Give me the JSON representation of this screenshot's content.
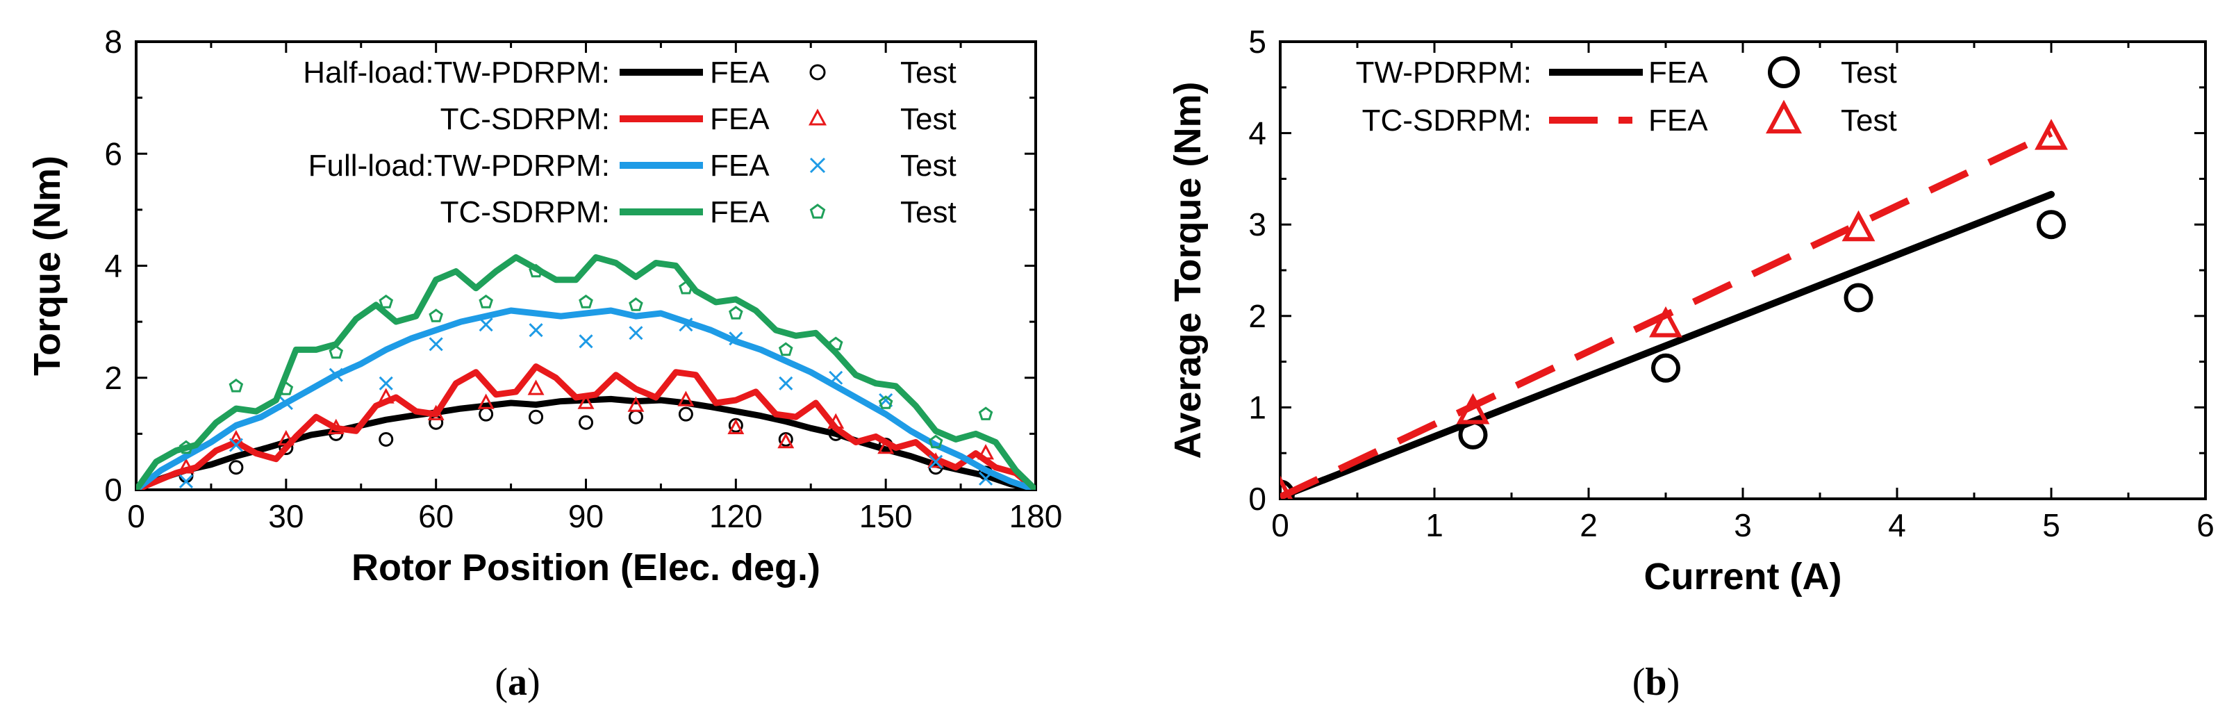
{
  "chart_data": [
    {
      "type": "line",
      "panel_label": "a",
      "title": "",
      "xlabel": "Rotor Position (Elec. deg.)",
      "ylabel": "Torque (Nm)",
      "xlim": [
        0,
        180
      ],
      "ylim": [
        0,
        8
      ],
      "xticks": [
        0,
        30,
        60,
        90,
        120,
        150,
        180
      ],
      "yticks": [
        0,
        2,
        4,
        6,
        8
      ],
      "legend": {
        "placement": "top",
        "groups": [
          {
            "prefix": "Half-load:",
            "label": "TW-PDRPM:",
            "fea": "FEA",
            "test": "Test"
          },
          {
            "prefix": "",
            "label": "TC-SDRPM:",
            "fea": "FEA",
            "test": "Test"
          },
          {
            "prefix": "Full-load:",
            "label": "TW-PDRPM:",
            "fea": "FEA",
            "test": "Test"
          },
          {
            "prefix": "",
            "label": "TC-SDRPM:",
            "fea": "FEA",
            "test": "Test"
          }
        ]
      },
      "series": [
        {
          "name": "Half-load TW-PDRPM FEA",
          "kind": "line",
          "color": "#000000",
          "x": [
            0,
            5,
            10,
            15,
            20,
            25,
            30,
            35,
            40,
            45,
            50,
            55,
            60,
            65,
            70,
            75,
            80,
            85,
            90,
            95,
            100,
            105,
            110,
            115,
            120,
            125,
            130,
            135,
            140,
            145,
            150,
            155,
            160,
            165,
            170,
            175,
            180
          ],
          "y": [
            0,
            0.2,
            0.35,
            0.45,
            0.6,
            0.72,
            0.85,
            0.98,
            1.05,
            1.15,
            1.25,
            1.32,
            1.38,
            1.45,
            1.5,
            1.55,
            1.52,
            1.58,
            1.6,
            1.62,
            1.58,
            1.6,
            1.55,
            1.48,
            1.4,
            1.32,
            1.22,
            1.1,
            1.0,
            0.85,
            0.72,
            0.6,
            0.45,
            0.35,
            0.25,
            0.1,
            0
          ]
        },
        {
          "name": "Half-load TW-PDRPM Test",
          "kind": "marker",
          "marker": "circle",
          "color": "#000000",
          "x": [
            10,
            20,
            30,
            40,
            50,
            60,
            70,
            80,
            90,
            100,
            110,
            120,
            130,
            140,
            150,
            160,
            170
          ],
          "y": [
            0.25,
            0.4,
            0.75,
            1.0,
            0.9,
            1.2,
            1.35,
            1.3,
            1.2,
            1.3,
            1.35,
            1.15,
            0.9,
            1.0,
            0.8,
            0.4,
            0.3
          ]
        },
        {
          "name": "Half-load TC-SDRPM FEA",
          "kind": "line",
          "color": "#e8191b",
          "x": [
            0,
            4,
            8,
            12,
            16,
            20,
            24,
            28,
            32,
            36,
            40,
            44,
            48,
            52,
            56,
            60,
            64,
            68,
            72,
            76,
            80,
            84,
            88,
            92,
            96,
            100,
            104,
            108,
            112,
            116,
            120,
            124,
            128,
            132,
            136,
            140,
            144,
            148,
            152,
            156,
            160,
            164,
            168,
            172,
            176,
            180
          ],
          "y": [
            0,
            0.15,
            0.3,
            0.4,
            0.7,
            0.85,
            0.65,
            0.55,
            0.95,
            1.3,
            1.1,
            1.05,
            1.5,
            1.65,
            1.4,
            1.35,
            1.9,
            2.1,
            1.7,
            1.75,
            2.2,
            2.0,
            1.65,
            1.7,
            2.05,
            1.8,
            1.65,
            2.1,
            2.05,
            1.55,
            1.6,
            1.75,
            1.35,
            1.3,
            1.55,
            1.1,
            0.85,
            0.95,
            0.75,
            0.85,
            0.55,
            0.4,
            0.65,
            0.4,
            0.3,
            0
          ]
        },
        {
          "name": "Half-load TC-SDRPM Test",
          "kind": "marker",
          "marker": "triangle",
          "color": "#e8191b",
          "x": [
            10,
            20,
            30,
            40,
            50,
            60,
            70,
            80,
            90,
            100,
            110,
            120,
            130,
            140,
            150,
            160,
            170
          ],
          "y": [
            0.4,
            0.9,
            0.9,
            1.1,
            1.65,
            1.35,
            1.55,
            1.8,
            1.55,
            1.5,
            1.6,
            1.1,
            0.85,
            1.2,
            0.75,
            0.5,
            0.65
          ]
        },
        {
          "name": "Full-load TW-PDRPM FEA",
          "kind": "line",
          "color": "#1e9be6",
          "x": [
            0,
            5,
            10,
            15,
            20,
            25,
            30,
            35,
            40,
            45,
            50,
            55,
            60,
            65,
            70,
            75,
            80,
            85,
            90,
            95,
            100,
            105,
            110,
            115,
            120,
            125,
            130,
            135,
            140,
            145,
            150,
            155,
            160,
            165,
            170,
            175,
            180
          ],
          "y": [
            0,
            0.35,
            0.6,
            0.85,
            1.15,
            1.3,
            1.55,
            1.8,
            2.05,
            2.25,
            2.5,
            2.7,
            2.85,
            3.0,
            3.1,
            3.2,
            3.15,
            3.1,
            3.15,
            3.2,
            3.1,
            3.15,
            3.0,
            2.85,
            2.65,
            2.5,
            2.3,
            2.1,
            1.85,
            1.6,
            1.35,
            1.05,
            0.8,
            0.6,
            0.35,
            0.15,
            0
          ]
        },
        {
          "name": "Full-load TW-PDRPM Test",
          "kind": "marker",
          "marker": "x",
          "color": "#1e9be6",
          "x": [
            10,
            20,
            30,
            40,
            50,
            60,
            70,
            80,
            90,
            100,
            110,
            120,
            130,
            140,
            150,
            160,
            170
          ],
          "y": [
            0.15,
            0.8,
            1.55,
            2.05,
            1.9,
            2.6,
            2.95,
            2.85,
            2.65,
            2.8,
            2.95,
            2.7,
            1.9,
            2.0,
            1.6,
            0.5,
            0.2
          ]
        },
        {
          "name": "Full-load TC-SDRPM FEA",
          "kind": "line",
          "color": "#1fa05a",
          "x": [
            0,
            4,
            8,
            12,
            16,
            20,
            24,
            28,
            32,
            36,
            40,
            44,
            48,
            52,
            56,
            60,
            64,
            68,
            72,
            76,
            80,
            84,
            88,
            92,
            96,
            100,
            104,
            108,
            112,
            116,
            120,
            124,
            128,
            132,
            136,
            140,
            144,
            148,
            152,
            156,
            160,
            164,
            168,
            172,
            176,
            180
          ],
          "y": [
            0,
            0.5,
            0.7,
            0.8,
            1.2,
            1.45,
            1.4,
            1.6,
            2.5,
            2.5,
            2.6,
            3.05,
            3.3,
            3.0,
            3.1,
            3.75,
            3.9,
            3.6,
            3.9,
            4.15,
            3.95,
            3.75,
            3.75,
            4.15,
            4.05,
            3.8,
            4.05,
            4.0,
            3.55,
            3.35,
            3.4,
            3.2,
            2.85,
            2.75,
            2.8,
            2.45,
            2.05,
            1.9,
            1.85,
            1.5,
            1.05,
            0.9,
            1.0,
            0.85,
            0.35,
            0
          ]
        },
        {
          "name": "Full-load TC-SDRPM Test",
          "kind": "marker",
          "marker": "pentagon",
          "color": "#1fa05a",
          "x": [
            10,
            20,
            30,
            40,
            50,
            60,
            70,
            80,
            90,
            100,
            110,
            120,
            130,
            140,
            150,
            160,
            170
          ],
          "y": [
            0.75,
            1.85,
            1.8,
            2.45,
            3.35,
            3.1,
            3.35,
            3.9,
            3.35,
            3.3,
            3.6,
            3.15,
            2.5,
            2.6,
            1.55,
            0.85,
            1.35
          ]
        }
      ]
    },
    {
      "type": "line",
      "panel_label": "b",
      "title": "",
      "xlabel": "Current (A)",
      "ylabel": "Average Torque (Nm)",
      "xlim": [
        0,
        6
      ],
      "ylim": [
        0,
        5
      ],
      "xticks": [
        0,
        1,
        2,
        3,
        4,
        5,
        6
      ],
      "yticks": [
        0,
        1,
        2,
        3,
        4,
        5
      ],
      "legend": {
        "placement": "top-left",
        "groups": [
          {
            "label": "TW-PDRPM:",
            "fea": "FEA",
            "test": "Test"
          },
          {
            "label": "TC-SDRPM:",
            "fea": "FEA",
            "test": "Test"
          }
        ]
      },
      "series": [
        {
          "name": "TW-PDRPM FEA",
          "kind": "line",
          "style": "solid",
          "color": "#000000",
          "x": [
            0,
            5
          ],
          "y": [
            0.02,
            3.33
          ]
        },
        {
          "name": "TW-PDRPM Test",
          "kind": "marker",
          "marker": "circle",
          "color": "#000000",
          "x": [
            0,
            1.25,
            2.5,
            3.75,
            5
          ],
          "y": [
            0.05,
            0.7,
            1.43,
            2.2,
            3.0
          ]
        },
        {
          "name": "TC-SDRPM FEA",
          "kind": "line",
          "style": "dashed",
          "color": "#e8191b",
          "x": [
            0,
            5
          ],
          "y": [
            0.02,
            4.0
          ]
        },
        {
          "name": "TC-SDRPM Test",
          "kind": "marker",
          "marker": "triangle",
          "color": "#e8191b",
          "x": [
            0,
            1.25,
            2.5,
            3.75,
            5
          ],
          "y": [
            0.05,
            0.95,
            1.9,
            2.95,
            3.95
          ]
        }
      ]
    }
  ]
}
